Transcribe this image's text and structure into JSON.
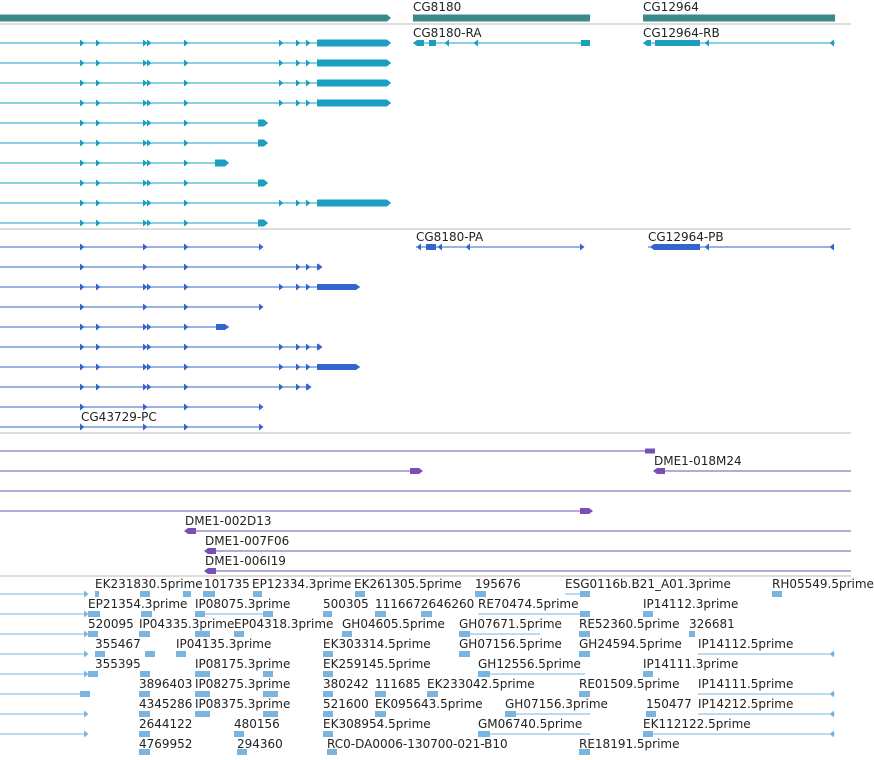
{
  "tracks": {
    "genes": {
      "color": "#3a8a8a",
      "labels": [
        "CG8180",
        "CG12964"
      ]
    },
    "transcripts": {
      "color": "#1a9fc0",
      "labels": [
        "CG8180-RA",
        "CG12964-RB"
      ]
    },
    "proteins": {
      "color": "#3366cc",
      "labels": [
        "CG8180-PA",
        "CG12964-PB",
        "CG43729-PC"
      ]
    },
    "clones": {
      "color": "#7a4fb5",
      "labels": [
        "DME1-018M24",
        "DME1-002D13",
        "DME1-007F06",
        "DME1-006I19"
      ]
    },
    "ests": {
      "color": "#7ab5e0",
      "labels": [
        "EK231830.5prime",
        "101735",
        "EP12334.3prime",
        "EK261305.5prime",
        "195676",
        "ESG0116b.B21_A01.3prime",
        "RH05549.5prime",
        "EP21354.3prime",
        "IP08075.3prime",
        "500305",
        "1116672646260",
        "RE70474.5prime",
        "IP14112.3prime",
        "520095",
        "IP04335.3prime",
        "EP04318.3prime",
        "GH04605.5prime",
        "GH07671.5prime",
        "RE52360.5prime",
        "326681",
        "355467",
        "IP04135.3prime",
        "EK303314.5prime",
        "GH07156.5prime",
        "GH24594.5prime",
        "IP14112.5prime",
        "355395",
        "IP08175.3prime",
        "EK259145.5prime",
        "GH12556.5prime",
        "IP14111.3prime",
        "3896403",
        "IP08275.3prime",
        "380242",
        "111685",
        "EK233042.5prime",
        "RE01509.5prime",
        "IP14111.5prime",
        "4345286",
        "IP08375.3prime",
        "521600",
        "EK095643.5prime",
        "GH07156.3prime",
        "150477",
        "IP14212.5prime",
        "2644122",
        "480156",
        "EK308954.5prime",
        "GM06740.5prime",
        "EK112122.5prime",
        "4769952",
        "294360",
        "RC0-DA0006-130700-021-B10",
        "RE18191.5prime"
      ]
    }
  }
}
